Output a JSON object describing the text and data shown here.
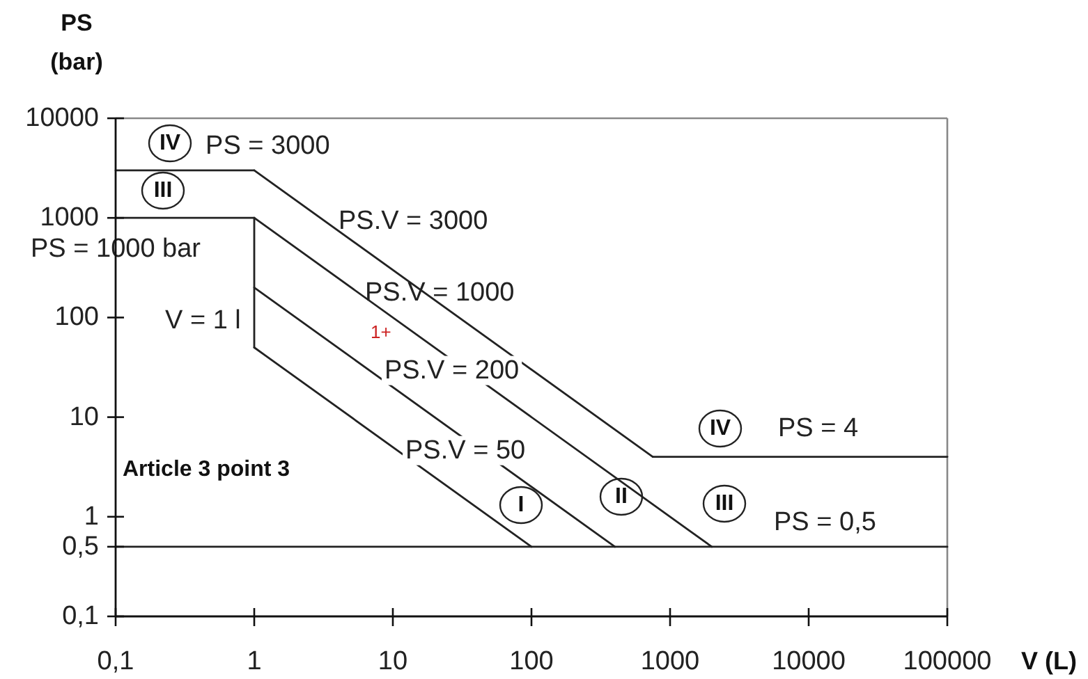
{
  "chart_data": {
    "type": "line",
    "xlabel": "V (L)",
    "ylabel": "PS (bar)",
    "log": "xy",
    "xlim": [
      0.1,
      100000
    ],
    "ylim": [
      0.1,
      10000
    ],
    "xticks": [
      {
        "value": 0.1,
        "label": "0,1"
      },
      1,
      10,
      100,
      1000,
      10000,
      100000
    ],
    "yticks": [
      {
        "value": 0.1,
        "label": "0,1"
      },
      {
        "value": 0.5,
        "label": "0,5"
      },
      1,
      10,
      100,
      1000,
      10000
    ],
    "series": [
      {
        "color": "#222222",
        "x": [
          0.1,
          1
        ],
        "values": [
          3000,
          3000
        ]
      },
      {
        "color": "#222222",
        "x": [
          1,
          750
        ],
        "values": [
          3000,
          4
        ]
      },
      {
        "color": "#222222",
        "x": [
          750,
          100000
        ],
        "values": [
          4,
          4
        ]
      },
      {
        "color": "#222222",
        "x": [
          0.1,
          1
        ],
        "values": [
          1000,
          1000
        ]
      },
      {
        "color": "#222222",
        "x": [
          1,
          2000
        ],
        "values": [
          1000,
          0.5
        ]
      },
      {
        "color": "#222222",
        "x": [
          1,
          1
        ],
        "values": [
          1000,
          50
        ]
      },
      {
        "color": "#222222",
        "x": [
          1,
          400
        ],
        "values": [
          200,
          0.5
        ]
      },
      {
        "color": "#222222",
        "x": [
          1,
          100
        ],
        "values": [
          50,
          0.5
        ]
      },
      {
        "color": "#222222",
        "x": [
          0.1,
          100000
        ],
        "values": [
          0.5,
          0.5
        ]
      }
    ],
    "annotations": [
      {
        "text": "PS = 3000",
        "x": 0.5,
        "y": 3000
      },
      {
        "text": "PS.V = 3000",
        "x": 3,
        "y": 1000
      },
      {
        "text": "PS = 4",
        "x": 10000,
        "y": 4
      },
      {
        "text": "PS = 1000 bar",
        "x": 0.1,
        "y": 1000
      },
      {
        "text": "PS.V = 1000",
        "x": 10,
        "y": 100
      },
      {
        "text": "V = 1 l",
        "x": 1,
        "y": 100
      },
      {
        "text": "PS.V = 200",
        "x": 20,
        "y": 10
      },
      {
        "text": "PS.V = 50",
        "x": 10,
        "y": 5
      },
      {
        "text": "PS = 0,5",
        "x": 10000,
        "y": 0.5
      },
      "IV",
      "III",
      "I",
      "II",
      "IV",
      "III",
      "Article 3 point 3",
      "1+"
    ]
  }
}
